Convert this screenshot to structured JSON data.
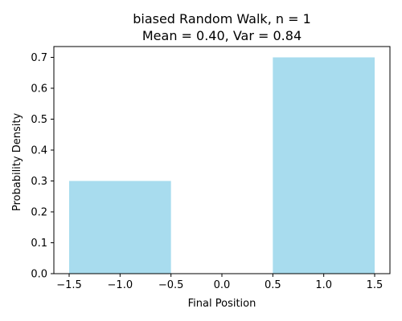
{
  "chart_data": {
    "type": "bar",
    "title": "biased Random Walk, n = 1",
    "subtitle": "Mean = 0.40, Var = 0.84",
    "xlabel": "Final Position",
    "ylabel": "Probability Density",
    "xlim": [
      -1.65,
      1.65
    ],
    "ylim": [
      0.0,
      0.735
    ],
    "xticks": [
      -1.5,
      -1.0,
      -0.5,
      0.0,
      0.5,
      1.0,
      1.5
    ],
    "xtick_labels": [
      "−1.5",
      "−1.0",
      "−0.5",
      "0.0",
      "0.5",
      "1.0",
      "1.5"
    ],
    "yticks": [
      0.0,
      0.1,
      0.2,
      0.3,
      0.4,
      0.5,
      0.6,
      0.7
    ],
    "ytick_labels": [
      "0.0",
      "0.1",
      "0.2",
      "0.3",
      "0.4",
      "0.5",
      "0.6",
      "0.7"
    ],
    "bars": [
      {
        "x0": -1.5,
        "x1": -0.5,
        "value": 0.3
      },
      {
        "x0": 0.5,
        "x1": 1.5,
        "value": 0.7
      }
    ],
    "bar_color": "#a8dcee",
    "grid": false
  }
}
